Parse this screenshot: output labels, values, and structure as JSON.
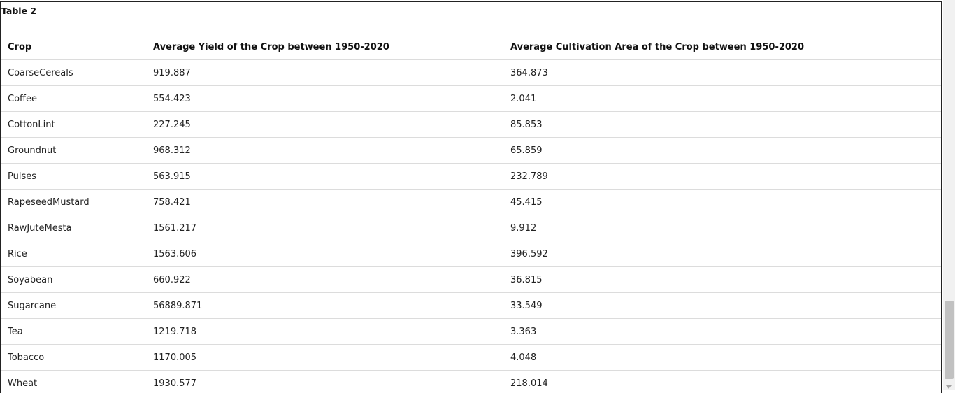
{
  "table": {
    "caption": "Table 2",
    "headers": [
      "Crop",
      "Average Yield of the Crop between 1950-2020",
      "Average Cultivation Area of the Crop between 1950-2020"
    ],
    "rows": [
      [
        "CoarseCereals",
        "919.887",
        "364.873"
      ],
      [
        "Coffee",
        "554.423",
        "2.041"
      ],
      [
        "CottonLint",
        "227.245",
        "85.853"
      ],
      [
        "Groundnut",
        "968.312",
        "65.859"
      ],
      [
        "Pulses",
        "563.915",
        "232.789"
      ],
      [
        "RapeseedMustard",
        "758.421",
        "45.415"
      ],
      [
        "RawJuteMesta",
        "1561.217",
        "9.912"
      ],
      [
        "Rice",
        "1563.606",
        "396.592"
      ],
      [
        "Soyabean",
        "660.922",
        "36.815"
      ],
      [
        "Sugarcane",
        "56889.871",
        "33.549"
      ],
      [
        "Tea",
        "1219.718",
        "3.363"
      ],
      [
        "Tobacco",
        "1170.005",
        "4.048"
      ],
      [
        "Wheat",
        "1930.577",
        "218.014"
      ]
    ]
  },
  "scrollbar": {
    "icons": [
      "chevron-down-icon"
    ],
    "colors": {
      "track": "#f1f1f1",
      "thumb": "#c1c1c1"
    }
  }
}
